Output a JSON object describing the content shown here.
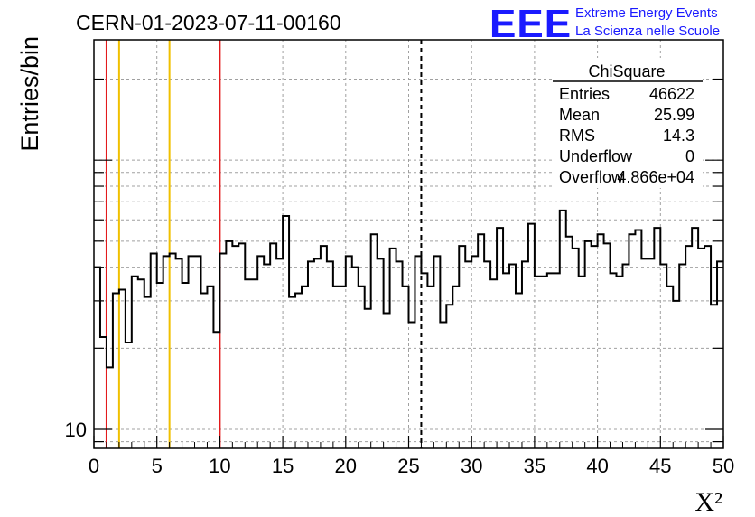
{
  "header": {
    "run_title": "CERN-01-2023-07-11-00160",
    "logo_text": "EEE",
    "logo_line1": "Extreme Energy Events",
    "logo_line2": "La Scienza nelle Scuole"
  },
  "stats_box": {
    "title": "ChiSquare",
    "rows": [
      {
        "label": "Entries",
        "value": "46622"
      },
      {
        "label": "Mean",
        "value": "25.99"
      },
      {
        "label": "RMS",
        "value": "14.3"
      },
      {
        "label": "Underflow",
        "value": "0"
      },
      {
        "label": "Overflow",
        "value": "4.866e+04"
      }
    ]
  },
  "chart_data": {
    "type": "histogram",
    "ylabel": "Entries/bin",
    "xlabel": "X²",
    "xlim": [
      0,
      50
    ],
    "ylim": [
      8.5,
      280
    ],
    "yscale": "log",
    "grid": true,
    "bin_width": 0.5,
    "x_ticks": [
      "0",
      "5",
      "10",
      "15",
      "20",
      "25",
      "30",
      "35",
      "40",
      "45",
      "50"
    ],
    "y_tick_labels": [
      {
        "value": 10,
        "label": "10"
      }
    ],
    "values": [
      40,
      22,
      17,
      32,
      33,
      21,
      37,
      36,
      31,
      45,
      35,
      44,
      45,
      43,
      35,
      44,
      44,
      32,
      34,
      23,
      45,
      50,
      48,
      49,
      36,
      36,
      44,
      41,
      49,
      43,
      62,
      31,
      32,
      34,
      42,
      43,
      48,
      42,
      34,
      34,
      44,
      40,
      34,
      28,
      53,
      43,
      27,
      47,
      42,
      34,
      25,
      44,
      38,
      34,
      44,
      25,
      29,
      34,
      48,
      42,
      44,
      53,
      42,
      36,
      56,
      38,
      41,
      32,
      42,
      58,
      37,
      37,
      38,
      38,
      65,
      52,
      47,
      37,
      50,
      48,
      53,
      49,
      38,
      37,
      41,
      53,
      55,
      43,
      43,
      56,
      41,
      34,
      30,
      41,
      48,
      56,
      47,
      48,
      29,
      42
    ],
    "vertical_lines": [
      {
        "x": 1,
        "color": "#e31a1c",
        "style": "solid"
      },
      {
        "x": 2,
        "color": "#f0c000",
        "style": "solid"
      },
      {
        "x": 6,
        "color": "#f0c000",
        "style": "solid"
      },
      {
        "x": 10,
        "color": "#e31a1c",
        "style": "solid"
      },
      {
        "x": 26,
        "color": "#000000",
        "style": "dashed"
      }
    ]
  }
}
